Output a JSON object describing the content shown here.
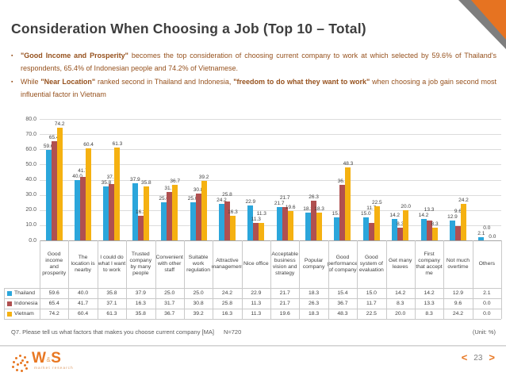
{
  "header": {
    "title": "Consideration When Choosing a Job (Top 10 – Total)"
  },
  "accent_color": "#e67321",
  "corner": {
    "orange": "#e67321",
    "gray": "#7e7e7e"
  },
  "bullets": [
    {
      "marker": "▪",
      "segments": [
        {
          "b": true,
          "t": "\"Good Income and Prosperity\""
        },
        {
          "b": false,
          "t": " becomes the top consideration of choosing current company to work at which selected by 59.6% of Thailand's respondents, 65.4% of Indonesian people and 74.2% of Vietnamese."
        }
      ]
    },
    {
      "marker": "▪",
      "segments": [
        {
          "b": false,
          "t": "While "
        },
        {
          "b": true,
          "t": "\"Near Location\""
        },
        {
          "b": false,
          "t": " ranked second in Thailand and Indonesia, "
        },
        {
          "b": true,
          "t": "\"freedom to do what they want to work\""
        },
        {
          "b": false,
          "t": " when choosing a job gain second most influential factor in Vietnam"
        }
      ]
    }
  ],
  "chart_data": {
    "type": "bar",
    "unit": "%",
    "title": "",
    "xlabel": "",
    "ylabel": "",
    "ylim": [
      0,
      80
    ],
    "ytick_step": 10,
    "grid": true,
    "data_table_shown": true,
    "legend_position": "table-left",
    "categories": [
      "Good income and prosperity",
      "The location is nearby",
      "I could do what I want to work",
      "Trusted company by many people",
      "Convenient with other staff",
      "Suitable work regulation",
      "Attractive management",
      "Nice office",
      "Acceptable business vision and strategy",
      "Popular company",
      "Good performance of company",
      "Good system of evaluation",
      "Get many leaves",
      "First company that accept me",
      "Not much overtime",
      "Others"
    ],
    "series": [
      {
        "name": "Thailand",
        "color": "#2BA6DB",
        "values": [
          59.6,
          40.0,
          35.8,
          37.9,
          25.0,
          25.0,
          24.2,
          22.9,
          21.7,
          18.3,
          15.4,
          15.0,
          14.2,
          14.2,
          12.9,
          2.1
        ]
      },
      {
        "name": "Indonesia",
        "color": "#B05050",
        "values": [
          65.4,
          41.7,
          37.1,
          16.3,
          31.7,
          30.8,
          25.8,
          11.3,
          21.7,
          26.3,
          36.7,
          11.7,
          8.3,
          13.3,
          9.6,
          0.0
        ]
      },
      {
        "name": "Vietnam",
        "color": "#F5B111",
        "values": [
          74.2,
          60.4,
          61.3,
          35.8,
          36.7,
          39.2,
          16.3,
          11.3,
          19.6,
          18.3,
          48.3,
          22.5,
          20.0,
          8.3,
          24.2,
          0.0
        ]
      }
    ]
  },
  "footer": {
    "question": "Q7. Please tell us what factors that makes you choose current company [MA]",
    "sample": "N=720",
    "unit_note": "(Unit: %)",
    "page": "23",
    "prev_arrow": "<",
    "next_arrow": ">",
    "logo": {
      "w": "W",
      "amp": "&",
      "s": "S",
      "tagline": "market research"
    }
  }
}
